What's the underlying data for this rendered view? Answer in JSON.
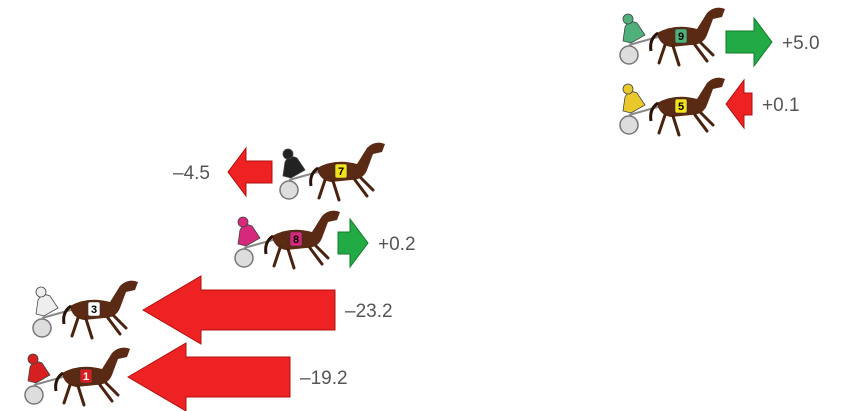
{
  "items": [
    {
      "number": "9",
      "change": "+5.0"
    },
    {
      "number": "5",
      "change": "+0.1"
    },
    {
      "number": "7",
      "change": "–4.5"
    },
    {
      "number": "8",
      "change": "+0.2"
    },
    {
      "number": "3",
      "change": "–23.2"
    },
    {
      "number": "1",
      "change": "–19.2"
    }
  ]
}
